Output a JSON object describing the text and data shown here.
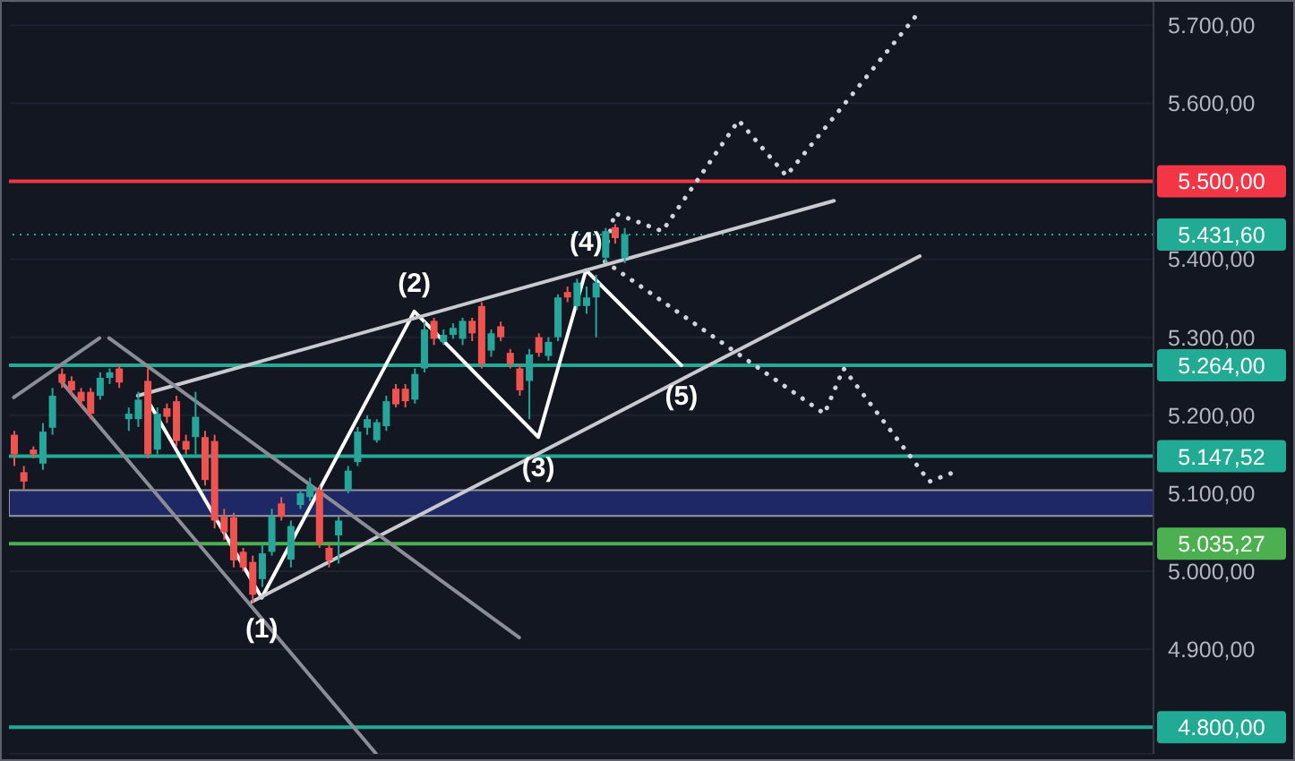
{
  "chart_data": {
    "type": "candlestick",
    "categories": [
      null,
      null,
      null,
      null,
      null,
      null,
      null,
      null,
      null,
      null,
      null,
      null,
      null,
      null,
      null,
      null,
      null,
      null,
      null,
      null,
      null,
      null,
      null,
      null,
      null,
      null,
      null,
      null,
      null,
      null,
      null,
      null,
      null,
      null,
      null,
      null,
      null,
      null,
      null,
      null,
      null,
      null,
      null,
      null,
      null,
      null,
      null,
      null,
      null,
      null,
      null,
      null,
      null,
      null,
      null,
      null,
      null,
      null,
      null,
      null,
      null,
      null,
      null,
      null,
      null,
      null,
      null,
      null,
      null,
      null,
      null,
      null,
      null,
      null,
      null,
      null,
      null,
      null,
      null,
      null,
      null,
      null,
      null,
      null,
      null,
      null,
      null,
      null,
      null,
      null,
      null,
      null,
      null,
      null,
      null,
      null,
      null,
      null,
      null,
      null,
      null,
      null,
      null,
      null,
      null,
      null,
      null,
      null,
      null,
      null,
      null,
      null,
      null,
      null,
      null,
      null,
      null,
      null,
      null,
      null
    ],
    "ohlc": [
      [
        5175,
        5180,
        5135,
        5150
      ],
      [
        5127,
        5135,
        5105,
        5115
      ],
      [
        5156,
        5160,
        5145,
        5150
      ],
      [
        5138,
        5190,
        5130,
        5179
      ],
      [
        5184,
        5235,
        5175,
        5225
      ],
      [
        5253,
        5260,
        5235,
        5242
      ],
      [
        5244,
        5250,
        5225,
        5232
      ],
      [
        5230,
        5235,
        5210,
        5218
      ],
      [
        5230,
        5235,
        5195,
        5202
      ],
      [
        5225,
        5255,
        5220,
        5248
      ],
      [
        5248,
        5260,
        5240,
        5255
      ],
      [
        5260,
        5265,
        5235,
        5242
      ],
      [
        5195,
        5210,
        5180,
        5202
      ],
      [
        5195,
        5230,
        5185,
        5220
      ],
      [
        5244,
        5260,
        5145,
        5150
      ],
      [
        5156,
        5210,
        5150,
        5202
      ],
      [
        5209,
        5215,
        5190,
        5198
      ],
      [
        5218,
        5225,
        5160,
        5167
      ],
      [
        5167,
        5175,
        5150,
        5156
      ],
      [
        5172,
        5230,
        5150,
        5198
      ],
      [
        5172,
        5180,
        5110,
        5117
      ],
      [
        5167,
        5175,
        5055,
        5065
      ],
      [
        5070,
        5080,
        5040,
        5050
      ],
      [
        5069,
        5075,
        5005,
        5014
      ],
      [
        5025,
        5030,
        5000,
        5005
      ],
      [
        5012,
        5020,
        4960,
        4970
      ],
      [
        4990,
        5035,
        4980,
        5023
      ],
      [
        5025,
        5080,
        5020,
        5070
      ],
      [
        5087,
        5095,
        5065,
        5070
      ],
      [
        5015,
        5065,
        5005,
        5058
      ],
      [
        5085,
        5105,
        5080,
        5100
      ],
      [
        5095,
        5120,
        5090,
        5110
      ],
      [
        5104,
        5110,
        5030,
        5035
      ],
      [
        5030,
        5035,
        5005,
        5014
      ],
      [
        5046,
        5070,
        5010,
        5065
      ],
      [
        5104,
        5135,
        5100,
        5129
      ],
      [
        5140,
        5185,
        5135,
        5179
      ],
      [
        5184,
        5200,
        5175,
        5195
      ],
      [
        5168,
        5195,
        5165,
        5191
      ],
      [
        5186,
        5225,
        5180,
        5218
      ],
      [
        5234,
        5240,
        5210,
        5214
      ],
      [
        5234,
        5240,
        5210,
        5218
      ],
      [
        5220,
        5260,
        5215,
        5253
      ],
      [
        5260,
        5320,
        5255,
        5310
      ],
      [
        5321,
        5325,
        5290,
        5298
      ],
      [
        5294,
        5310,
        5290,
        5303
      ],
      [
        5303,
        5318,
        5298,
        5312
      ],
      [
        5298,
        5325,
        5290,
        5321
      ],
      [
        5321,
        5325,
        5295,
        5305
      ],
      [
        5340,
        5345,
        5260,
        5266
      ],
      [
        5283,
        5310,
        5275,
        5305
      ],
      [
        5314,
        5320,
        5295,
        5300
      ],
      [
        5280,
        5285,
        5260,
        5266
      ],
      [
        5260,
        5265,
        5225,
        5232
      ],
      [
        5244,
        5285,
        5195,
        5278
      ],
      [
        5300,
        5305,
        5275,
        5280
      ],
      [
        5276,
        5300,
        5270,
        5294
      ],
      [
        5300,
        5355,
        5295,
        5351
      ],
      [
        5358,
        5365,
        5345,
        5351
      ],
      [
        5340,
        5375,
        5335,
        5370
      ],
      [
        5340,
        5365,
        5330,
        5351
      ],
      [
        5351,
        5380,
        5300,
        5370
      ],
      [
        5402,
        5440,
        5395,
        5436
      ],
      [
        5441,
        5445,
        5420,
        5427
      ],
      [
        5402,
        5440,
        5395,
        5432
      ],
      null,
      null,
      null,
      null,
      null,
      null,
      null,
      null,
      null,
      null,
      null,
      null,
      null,
      null,
      null,
      null,
      null,
      null,
      null,
      null,
      null,
      null,
      null,
      null,
      null,
      null,
      null,
      null,
      null,
      null,
      null,
      null,
      null,
      null,
      null,
      null,
      null,
      null,
      null,
      null,
      null,
      null,
      null,
      null,
      null,
      null,
      null,
      null,
      null,
      null,
      null,
      null,
      null,
      null,
      null
    ],
    "colors": [
      "#ef5350",
      "#ef5350",
      "#ef5350",
      "#26a69a",
      "#26a69a",
      "#ef5350",
      "#ef5350",
      "#ef5350",
      "#ef5350",
      "#26a69a",
      "#26a69a",
      "#ef5350",
      "#26a69a",
      "#26a69a",
      "#ef5350",
      "#26a69a",
      "#ef5350",
      "#ef5350",
      "#ef5350",
      "#26a69a",
      "#ef5350",
      "#ef5350",
      "#ef5350",
      "#ef5350",
      "#ef5350",
      "#ef5350",
      "#26a69a",
      "#26a69a",
      "#ef5350",
      "#26a69a",
      "#26a69a",
      "#26a69a",
      "#ef5350",
      "#ef5350",
      "#26a69a",
      "#26a69a",
      "#26a69a",
      "#26a69a",
      "#26a69a",
      "#26a69a",
      "#ef5350",
      "#ef5350",
      "#26a69a",
      "#26a69a",
      "#ef5350",
      "#26a69a",
      "#26a69a",
      "#26a69a",
      "#ef5350",
      "#ef5350",
      "#26a69a",
      "#ef5350",
      "#ef5350",
      "#ef5350",
      "#26a69a",
      "#ef5350",
      "#26a69a",
      "#26a69a",
      "#ef5350",
      "#26a69a",
      "#26a69a",
      "#26a69a",
      "#26a69a",
      "#ef5350",
      "#26a69a",
      null,
      null,
      null,
      null,
      null,
      null,
      null,
      null,
      null,
      null,
      null,
      null,
      null,
      null,
      null,
      null,
      null,
      null,
      null,
      null,
      null,
      null,
      null,
      null,
      null,
      null,
      null,
      null,
      null,
      null,
      null,
      null,
      null,
      null,
      null,
      null,
      null,
      null,
      null,
      null,
      null,
      null,
      null,
      null,
      null,
      null,
      null,
      null,
      null,
      null,
      null,
      null,
      null,
      null,
      null
    ],
    "series": [
      {
        "type": "line",
        "color": "#ffffff",
        "line_style": "solid",
        "values": [
          null,
          null,
          null,
          null,
          null,
          null,
          null,
          null,
          null,
          null,
          null,
          null,
          null,
          null,
          5220,
          null,
          null,
          null,
          null,
          null,
          null,
          null,
          null,
          null,
          null,
          null,
          4966,
          null,
          null,
          null,
          null,
          null,
          null,
          null,
          null,
          null,
          null,
          null,
          null,
          null,
          null,
          null,
          5333,
          null,
          null,
          null,
          null,
          null,
          null,
          null,
          null,
          null,
          null,
          null,
          null,
          5172,
          null,
          null,
          null,
          null,
          5386,
          null,
          null,
          null,
          null,
          null,
          null,
          null,
          null,
          null,
          5264,
          null,
          null,
          null,
          null,
          null,
          null,
          null,
          null,
          null,
          null,
          null,
          null,
          null,
          null,
          null,
          null,
          null,
          null,
          null,
          null,
          null,
          null,
          null,
          null,
          null,
          null,
          null,
          null,
          null,
          null,
          null,
          null,
          null,
          null,
          null,
          null,
          null,
          null,
          null,
          null,
          null,
          null,
          null,
          null,
          null,
          null,
          null,
          null,
          null
        ]
      },
      {
        "type": "line",
        "color": "#c8cad0",
        "line_style": "solid",
        "values": [
          null,
          null,
          null,
          null,
          null,
          null,
          null,
          null,
          null,
          null,
          null,
          null,
          null,
          5225,
          null,
          null,
          null,
          null,
          null,
          null,
          null,
          null,
          null,
          null,
          null,
          null,
          null,
          null,
          null,
          null,
          null,
          null,
          null,
          null,
          null,
          null,
          null,
          null,
          null,
          null,
          null,
          null,
          null,
          null,
          null,
          null,
          null,
          null,
          null,
          null,
          null,
          null,
          null,
          null,
          null,
          null,
          null,
          null,
          null,
          null,
          null,
          null,
          null,
          null,
          null,
          null,
          null,
          null,
          null,
          null,
          null,
          null,
          null,
          null,
          null,
          null,
          null,
          null,
          null,
          null,
          null,
          null,
          null,
          null,
          null,
          null,
          5475,
          null,
          null,
          null,
          null,
          null,
          null,
          null,
          null,
          null,
          null,
          null,
          null,
          null,
          null,
          null,
          null,
          null,
          null,
          null,
          null,
          null,
          null,
          null,
          null,
          null,
          null,
          null,
          null,
          null,
          null,
          null,
          null,
          null
        ]
      },
      {
        "type": "line",
        "color": "#c8cad0",
        "line_style": "solid",
        "values": [
          null,
          null,
          null,
          null,
          null,
          null,
          null,
          null,
          null,
          null,
          null,
          null,
          null,
          null,
          null,
          null,
          null,
          null,
          null,
          null,
          null,
          null,
          null,
          null,
          null,
          4961,
          null,
          null,
          null,
          null,
          null,
          null,
          null,
          null,
          null,
          null,
          null,
          null,
          null,
          null,
          null,
          null,
          null,
          null,
          null,
          null,
          null,
          null,
          null,
          null,
          null,
          null,
          null,
          null,
          null,
          null,
          null,
          null,
          null,
          null,
          null,
          null,
          null,
          null,
          null,
          null,
          null,
          null,
          null,
          null,
          null,
          null,
          null,
          null,
          null,
          null,
          null,
          null,
          null,
          null,
          null,
          null,
          null,
          null,
          null,
          null,
          null,
          null,
          null,
          null,
          null,
          null,
          null,
          null,
          null,
          5404,
          null,
          null,
          null,
          null,
          null,
          null,
          null,
          null,
          null,
          null,
          null,
          null,
          null,
          null,
          null,
          null,
          null,
          null,
          null,
          null,
          null,
          null,
          null,
          null
        ]
      },
      {
        "type": "line",
        "color": "#8a8d96",
        "line_style": "solid",
        "values": [
          5223,
          null,
          null,
          null,
          null,
          null,
          null,
          null,
          null,
          5299,
          null,
          null,
          null,
          null,
          null,
          null,
          null,
          null,
          null,
          null,
          null,
          null,
          null,
          null,
          null,
          null,
          null,
          null,
          null,
          null,
          null,
          null,
          null,
          null,
          null,
          null,
          null,
          null,
          null,
          null,
          null,
          null,
          null,
          null,
          null,
          null,
          null,
          null,
          null,
          null,
          null,
          null,
          null,
          null,
          null,
          null,
          null,
          null,
          null,
          null,
          null,
          null,
          null,
          null,
          null,
          null,
          null,
          null,
          null,
          null,
          null,
          null,
          null,
          null,
          null,
          null,
          null,
          null,
          null,
          null,
          null,
          null,
          null,
          null,
          null,
          null,
          null,
          null,
          null,
          null,
          null,
          null,
          null,
          null,
          null,
          null,
          null,
          null,
          null,
          null,
          null,
          null,
          null,
          null,
          null,
          null,
          null,
          null,
          null,
          null,
          null,
          null,
          null,
          null,
          null,
          null,
          null,
          null,
          null,
          null
        ]
      },
      {
        "type": "line",
        "color": "#8a8d96",
        "line_style": "solid",
        "values": [
          null,
          null,
          null,
          null,
          null,
          null,
          null,
          null,
          null,
          null,
          5299,
          null,
          null,
          null,
          null,
          null,
          null,
          null,
          null,
          null,
          null,
          null,
          null,
          null,
          null,
          null,
          null,
          null,
          null,
          null,
          null,
          null,
          null,
          null,
          null,
          null,
          null,
          null,
          null,
          null,
          null,
          null,
          null,
          null,
          null,
          null,
          null,
          null,
          null,
          null,
          null,
          null,
          null,
          4915,
          null,
          null,
          null,
          null,
          null,
          null,
          null,
          null,
          null,
          null,
          null,
          null,
          null,
          null,
          null,
          null,
          null,
          null,
          null,
          null,
          null,
          null,
          null,
          null,
          null,
          null,
          null,
          null,
          null,
          null,
          null,
          null,
          null,
          null,
          null,
          null,
          null,
          null,
          null,
          null,
          null,
          null,
          null,
          null,
          null,
          null,
          null,
          null,
          null,
          null,
          null,
          null,
          null,
          null,
          null,
          null,
          null,
          null,
          null,
          null,
          null,
          null,
          null,
          null,
          null,
          null
        ]
      },
      {
        "type": "line",
        "color": "#8a8d96",
        "line_style": "solid",
        "values": [
          null,
          null,
          null,
          null,
          null,
          5243,
          null,
          null,
          null,
          null,
          null,
          null,
          null,
          null,
          null,
          null,
          null,
          null,
          null,
          null,
          null,
          null,
          null,
          null,
          null,
          null,
          null,
          null,
          null,
          null,
          null,
          null,
          null,
          null,
          null,
          null,
          null,
          null,
          4766,
          null,
          null,
          null,
          null,
          null,
          null,
          null,
          null,
          null,
          null,
          null,
          null,
          null,
          null,
          null,
          null,
          null,
          null,
          null,
          null,
          null,
          null,
          null,
          null,
          null,
          null,
          null,
          null,
          null,
          null,
          null,
          null,
          null,
          null,
          null,
          null,
          null,
          null,
          null,
          null,
          null,
          null,
          null,
          null,
          null,
          null,
          null,
          null,
          null,
          null,
          null,
          null,
          null,
          null,
          null,
          null,
          null,
          null,
          null,
          null,
          null,
          null,
          null,
          null,
          null,
          null,
          null,
          null,
          null,
          null,
          null,
          null,
          null,
          null,
          null,
          null,
          null,
          null,
          null,
          null,
          null
        ]
      },
      {
        "type": "line",
        "color": "#d1d4dc",
        "line_style": "dotted",
        "values": [
          null,
          null,
          null,
          null,
          null,
          null,
          null,
          null,
          null,
          null,
          null,
          null,
          null,
          null,
          null,
          null,
          null,
          null,
          null,
          null,
          null,
          null,
          null,
          null,
          null,
          null,
          null,
          null,
          null,
          null,
          null,
          null,
          null,
          null,
          null,
          null,
          null,
          null,
          null,
          null,
          null,
          null,
          null,
          null,
          null,
          null,
          null,
          null,
          null,
          null,
          null,
          null,
          null,
          null,
          null,
          null,
          null,
          null,
          null,
          null,
          null,
          null,
          5409,
          5459,
          null,
          null,
          null,
          null,
          5436,
          null,
          null,
          null,
          null,
          null,
          null,
          null,
          5578,
          null,
          null,
          null,
          null,
          5507,
          null,
          null,
          null,
          null,
          null,
          null,
          null,
          null,
          null,
          null,
          null,
          null,
          null,
          5718,
          null,
          null,
          null,
          null,
          null,
          null,
          null,
          null,
          null,
          null,
          null,
          null,
          null,
          null,
          null,
          null,
          null,
          null,
          null,
          null,
          null,
          null,
          null,
          null
        ]
      },
      {
        "type": "line",
        "color": "#d1d4dc",
        "line_style": "dotted",
        "values": [
          null,
          null,
          null,
          null,
          null,
          null,
          null,
          null,
          null,
          null,
          null,
          null,
          null,
          null,
          null,
          null,
          null,
          null,
          null,
          null,
          null,
          null,
          null,
          null,
          null,
          null,
          null,
          null,
          null,
          null,
          null,
          null,
          null,
          null,
          null,
          null,
          null,
          null,
          null,
          null,
          null,
          null,
          null,
          null,
          null,
          null,
          null,
          null,
          null,
          null,
          null,
          null,
          null,
          null,
          null,
          null,
          null,
          null,
          null,
          null,
          null,
          null,
          5397,
          null,
          null,
          null,
          null,
          null,
          null,
          null,
          null,
          null,
          null,
          null,
          null,
          null,
          null,
          null,
          null,
          null,
          null,
          null,
          null,
          null,
          null,
          5202,
          null,
          5260,
          null,
          null,
          null,
          null,
          null,
          null,
          null,
          null,
          5115,
          null,
          null,
          5129,
          null,
          null,
          null,
          null,
          null,
          null,
          null,
          null,
          null,
          null,
          null,
          null,
          null,
          null,
          null,
          null,
          null,
          null,
          null,
          null
        ]
      }
    ],
    "ylim": [
      4766,
      5730
    ],
    "yticks": [
      {
        "value": 4900,
        "label": "4.900,00"
      },
      {
        "value": 5000,
        "label": "5.000,00"
      },
      {
        "value": 5100,
        "label": "5.100,00"
      },
      {
        "value": 5200,
        "label": "5.200,00"
      },
      {
        "value": 5300,
        "label": "5.300,00"
      },
      {
        "value": 5400,
        "label": "5.400,00"
      },
      {
        "value": 5600,
        "label": "5.600,00"
      },
      {
        "value": 5700,
        "label": "5.700,00"
      }
    ],
    "grid": "y",
    "tick_labels": "y",
    "ref_lines": [
      {
        "axis": "y",
        "value": 5500,
        "label": "5.500,00",
        "color": "#f23645",
        "line_style": "solid"
      },
      {
        "axis": "y",
        "value": 5431.6,
        "label": "5.431,60",
        "color": "#22ab94",
        "line_style": "dotted"
      },
      {
        "axis": "y",
        "value": 5264,
        "label": "5.264,00",
        "color": "#22ab94",
        "line_style": "solid"
      },
      {
        "axis": "y",
        "value": 5147.52,
        "label": "5.147,52",
        "color": "#22ab94",
        "line_style": "solid"
      },
      {
        "axis": "y",
        "value": 5035.27,
        "label": "5.035,27",
        "color": "#4caf50",
        "line_style": "solid"
      },
      {
        "axis": "y",
        "value": 4800,
        "label": "4.800,00",
        "color": "#22ab94",
        "line_style": "solid"
      }
    ],
    "bands": [
      {
        "axis": "y",
        "from": 5071,
        "to": 5104,
        "color": "#1f2a6b"
      }
    ],
    "annotations": [
      {
        "text": "(1)",
        "y": 4966
      },
      {
        "text": "(2)",
        "y": 5333
      },
      {
        "text": "(3)",
        "y": 5172
      },
      {
        "text": "(4)",
        "y": 5386
      },
      {
        "text": "(5)",
        "y": 5264
      }
    ]
  }
}
